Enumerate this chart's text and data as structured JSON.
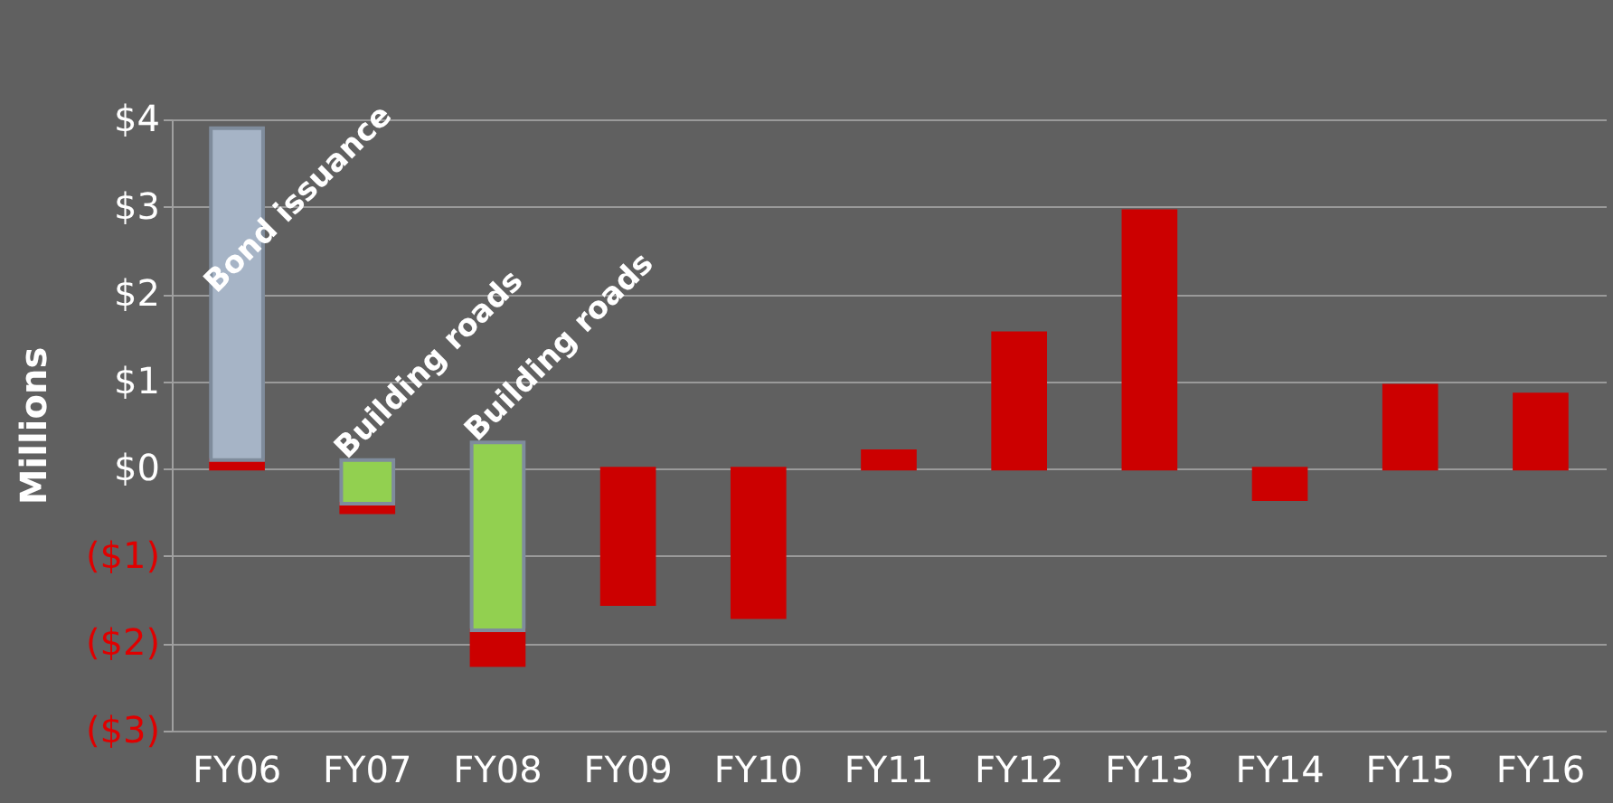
{
  "chart_data": {
    "type": "bar",
    "ylabel": "Millions",
    "categories": [
      "FY06",
      "FY07",
      "FY08",
      "FY09",
      "FY10",
      "FY11",
      "FY12",
      "FY13",
      "FY14",
      "FY15",
      "FY16"
    ],
    "series": [
      {
        "color": "#cc0000",
        "base": [
          0,
          -0.4,
          -1.85,
          0,
          0,
          0,
          0,
          0,
          0,
          0,
          0
        ],
        "values": [
          0.1,
          -0.1,
          -0.4,
          -1.55,
          -1.7,
          0.2,
          1.55,
          2.95,
          -0.35,
          0.95,
          0.85
        ]
      },
      {
        "color": "#a6b4c6",
        "base": [
          0.1,
          null,
          null,
          null,
          null,
          null,
          null,
          null,
          null,
          null,
          null
        ],
        "values": [
          3.8,
          null,
          null,
          null,
          null,
          null,
          null,
          null,
          null,
          null,
          null
        ]
      },
      {
        "color": "#92d050",
        "base": [
          null,
          -0.4,
          -1.85,
          null,
          null,
          null,
          null,
          null,
          null,
          null,
          null
        ],
        "values": [
          null,
          0.5,
          2.15,
          null,
          null,
          null,
          null,
          null,
          null,
          null,
          null
        ]
      }
    ],
    "ylim": [
      -3,
      4
    ],
    "yticks": [
      {
        "value": -3,
        "label": "($3)"
      },
      {
        "value": -2,
        "label": "($2)"
      },
      {
        "value": -1,
        "label": "($1)"
      },
      {
        "value": 0,
        "label": "$0"
      },
      {
        "value": 1,
        "label": "$1"
      },
      {
        "value": 2,
        "label": "$2"
      },
      {
        "value": 3,
        "label": "$3"
      },
      {
        "value": 4,
        "label": "$4"
      }
    ],
    "grid": "y",
    "annotations": [
      "Bond issuance",
      "Building roads",
      "Building roads"
    ]
  }
}
